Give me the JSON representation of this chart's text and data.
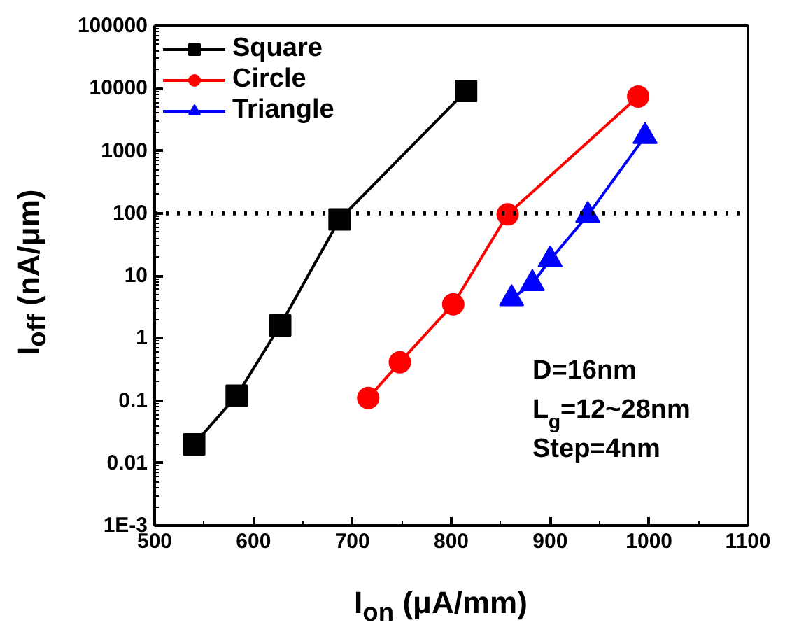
{
  "chart_data": {
    "type": "line",
    "xlabel": "I$_{on}$ (μA/mm)",
    "ylabel": "I$_{off}$ (nA/μm)",
    "series": [
      {
        "name": "Square",
        "color": "#000000",
        "marker": "square",
        "x": [
          540,
          583,
          627,
          687,
          815
        ],
        "values": [
          0.02,
          0.12,
          1.6,
          80,
          9100
        ]
      },
      {
        "name": "Circle",
        "color": "#ff0000",
        "marker": "circle",
        "x": [
          716,
          748,
          802,
          857,
          989
        ],
        "values": [
          0.11,
          0.41,
          3.5,
          96,
          7400
        ]
      },
      {
        "name": "Triangle",
        "color": "#0000ff",
        "marker": "triangle",
        "x": [
          861,
          882,
          900,
          938,
          996
        ],
        "values": [
          4.3,
          7.5,
          18,
          93,
          1700
        ]
      }
    ],
    "log": "y",
    "xlim": [
      500,
      1100
    ],
    "ylim": [
      0.001,
      100000
    ],
    "xticks": [
      500,
      600,
      700,
      800,
      900,
      1000,
      1100
    ],
    "yticks": [
      {
        "value": 0.001,
        "label": "1E-3"
      },
      0.01,
      0.1,
      1,
      10,
      100,
      1000,
      10000,
      100000
    ],
    "ref_lines": [
      {
        "axis": "y",
        "value": 100,
        "label": null,
        "color": "#000000",
        "line_style": "dotted"
      }
    ],
    "annotations": [
      {
        "text": "D=16nm"
      },
      {
        "text": "L$_{g}$=12~28nm"
      },
      {
        "text": "Step=4nm"
      }
    ],
    "legend": "top left",
    "grid": false,
    "line_style": "solid"
  }
}
